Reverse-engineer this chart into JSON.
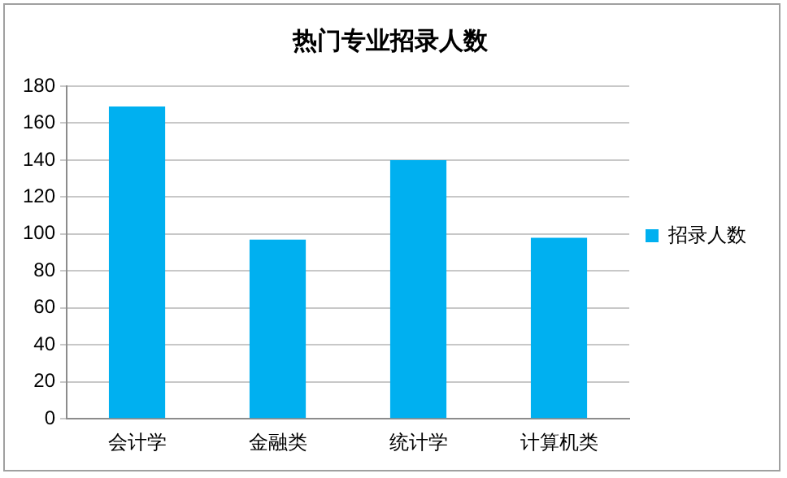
{
  "chart_data": {
    "type": "bar",
    "title": "热门专业招录人数",
    "categories": [
      "会计学",
      "金融类",
      "统计学",
      "计算机类"
    ],
    "series": [
      {
        "name": "招录人数",
        "color": "#00b0f0",
        "values": [
          169,
          97,
          140,
          98
        ]
      }
    ],
    "ylim": [
      0,
      180
    ],
    "yticks": [
      0,
      20,
      40,
      60,
      80,
      100,
      120,
      140,
      160,
      180
    ],
    "grid": "y",
    "legend": "right"
  }
}
